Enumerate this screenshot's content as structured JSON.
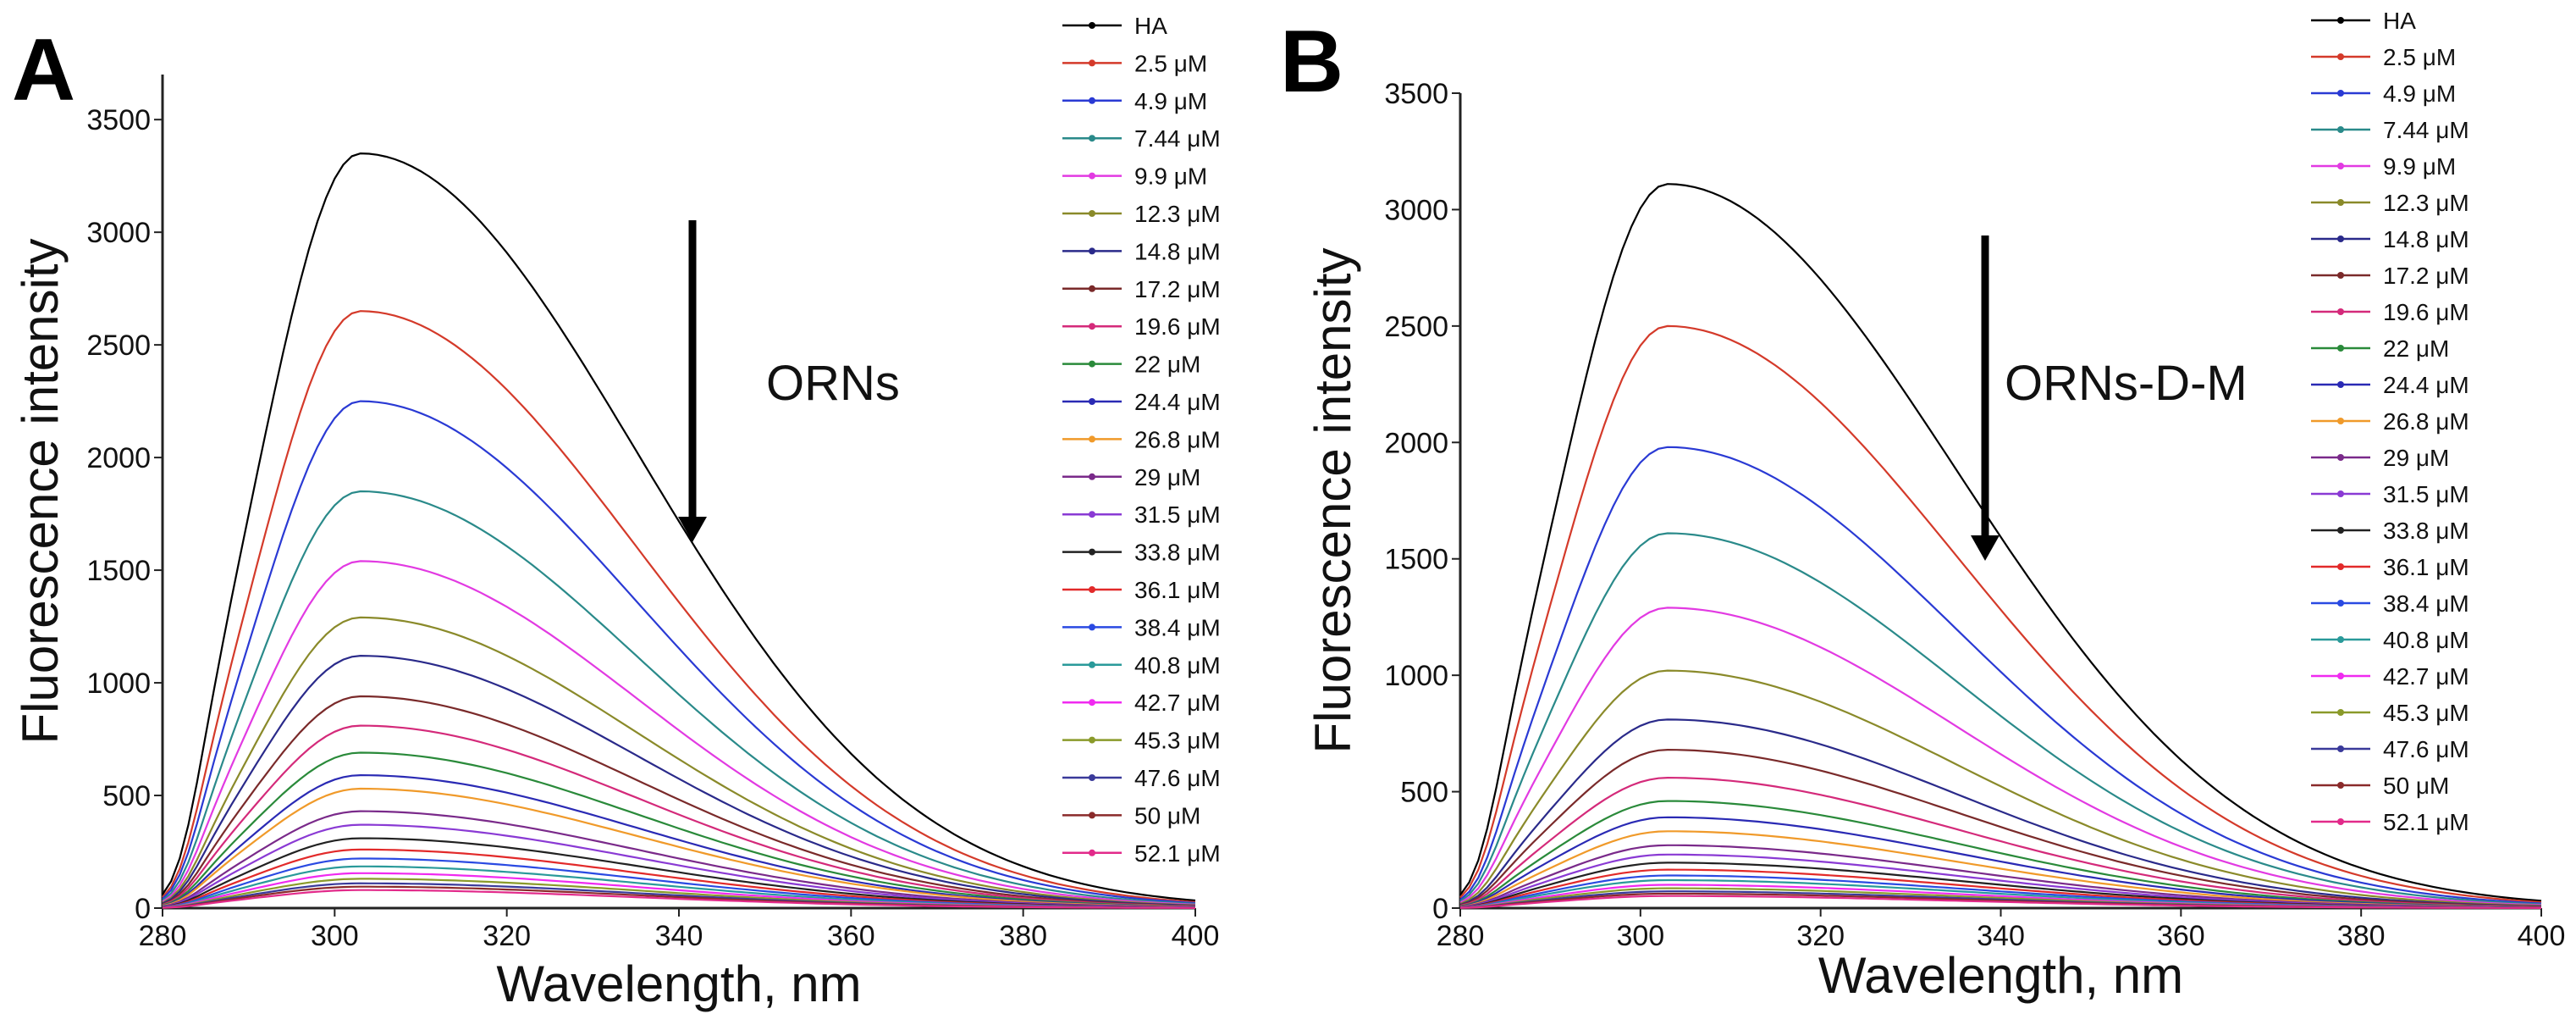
{
  "chart_data": [
    {
      "type": "line",
      "panel": "A",
      "xlabel": "Wavelength, nm",
      "ylabel": "Fluorescence intensity",
      "xlim": [
        280,
        400
      ],
      "ylim": [
        0,
        3700
      ],
      "xticks": [
        280,
        300,
        320,
        340,
        360,
        380,
        400
      ],
      "yticks": [
        0,
        500,
        1000,
        1500,
        2000,
        2500,
        3000,
        3500
      ],
      "annotation": "ORNs",
      "arrow": "down",
      "series": [
        {
          "name": "HA",
          "peak": 3350,
          "color": "#000000"
        },
        {
          "name": "2.5 μM",
          "peak": 2650,
          "color": "#d43a2a"
        },
        {
          "name": "4.9 μM",
          "peak": 2250,
          "color": "#2a3ad4"
        },
        {
          "name": "7.44 μM",
          "peak": 1850,
          "color": "#2a8a8a"
        },
        {
          "name": "9.9 μM",
          "peak": 1540,
          "color": "#e23ae2"
        },
        {
          "name": "12.3 μM",
          "peak": 1290,
          "color": "#8a8a2a"
        },
        {
          "name": "14.8 μM",
          "peak": 1120,
          "color": "#2a2a8a"
        },
        {
          "name": "17.2 μM",
          "peak": 940,
          "color": "#7a2a2a"
        },
        {
          "name": "19.6 μM",
          "peak": 810,
          "color": "#d42a7a"
        },
        {
          "name": "22 μM",
          "peak": 690,
          "color": "#2a8a3a"
        },
        {
          "name": "24.4 μM",
          "peak": 590,
          "color": "#2a2ab4"
        },
        {
          "name": "26.8 μM",
          "peak": 530,
          "color": "#f09a2a"
        },
        {
          "name": "29 μM",
          "peak": 430,
          "color": "#7a2a8a"
        },
        {
          "name": "31.5 μM",
          "peak": 370,
          "color": "#8a3ad4"
        },
        {
          "name": "33.8 μM",
          "peak": 310,
          "color": "#222222"
        },
        {
          "name": "36.1 μM",
          "peak": 260,
          "color": "#e22a2a"
        },
        {
          "name": "38.4 μM",
          "peak": 220,
          "color": "#2a4ae2"
        },
        {
          "name": "40.8 μM",
          "peak": 185,
          "color": "#2a9a9a"
        },
        {
          "name": "42.7 μM",
          "peak": 155,
          "color": "#f02af0"
        },
        {
          "name": "45.3 μM",
          "peak": 130,
          "color": "#8a9a2a"
        },
        {
          "name": "47.6 μM",
          "peak": 110,
          "color": "#3a3a9a"
        },
        {
          "name": "50 μM",
          "peak": 95,
          "color": "#8a2a2a"
        },
        {
          "name": "52.1 μM",
          "peak": 80,
          "color": "#e22a8a"
        }
      ]
    },
    {
      "type": "line",
      "panel": "B",
      "xlabel": "Wavelength, nm",
      "ylabel": "Fluorescence intensity",
      "xlim": [
        280,
        400
      ],
      "ylim": [
        0,
        3500
      ],
      "xticks": [
        280,
        300,
        320,
        340,
        360,
        380,
        400
      ],
      "yticks": [
        0,
        500,
        1000,
        1500,
        2000,
        2500,
        3000,
        3500
      ],
      "annotation": "ORNs-D-M",
      "arrow": "down",
      "series": [
        {
          "name": "HA",
          "peak": 3110,
          "color": "#000000"
        },
        {
          "name": "2.5 μM",
          "peak": 2500,
          "color": "#d43a2a"
        },
        {
          "name": "4.9 μM",
          "peak": 1980,
          "color": "#2a3ad4"
        },
        {
          "name": "7.44 μM",
          "peak": 1610,
          "color": "#2a8a8a"
        },
        {
          "name": "9.9 μM",
          "peak": 1290,
          "color": "#e23ae2"
        },
        {
          "name": "12.3 μM",
          "peak": 1020,
          "color": "#8a8a2a"
        },
        {
          "name": "14.8 μM",
          "peak": 810,
          "color": "#2a2a8a"
        },
        {
          "name": "17.2 μM",
          "peak": 680,
          "color": "#7a2a2a"
        },
        {
          "name": "19.6 μM",
          "peak": 560,
          "color": "#d42a7a"
        },
        {
          "name": "22 μM",
          "peak": 460,
          "color": "#2a8a3a"
        },
        {
          "name": "24.4 μM",
          "peak": 390,
          "color": "#2a2ab4"
        },
        {
          "name": "26.8 μM",
          "peak": 330,
          "color": "#f09a2a"
        },
        {
          "name": "29 μM",
          "peak": 270,
          "color": "#7a2a8a"
        },
        {
          "name": "31.5 μM",
          "peak": 230,
          "color": "#8a3ad4"
        },
        {
          "name": "33.8 μM",
          "peak": 195,
          "color": "#222222"
        },
        {
          "name": "36.1 μM",
          "peak": 165,
          "color": "#e22a2a"
        },
        {
          "name": "38.4 μM",
          "peak": 140,
          "color": "#2a4ae2"
        },
        {
          "name": "40.8 μM",
          "peak": 120,
          "color": "#2a9a9a"
        },
        {
          "name": "42.7 μM",
          "peak": 100,
          "color": "#f02af0"
        },
        {
          "name": "45.3 μM",
          "peak": 85,
          "color": "#8a9a2a"
        },
        {
          "name": "47.6 μM",
          "peak": 72,
          "color": "#3a3a9a"
        },
        {
          "name": "50 μM",
          "peak": 62,
          "color": "#8a2a2a"
        },
        {
          "name": "52.1 μM",
          "peak": 52,
          "color": "#e22a8a"
        }
      ]
    }
  ]
}
